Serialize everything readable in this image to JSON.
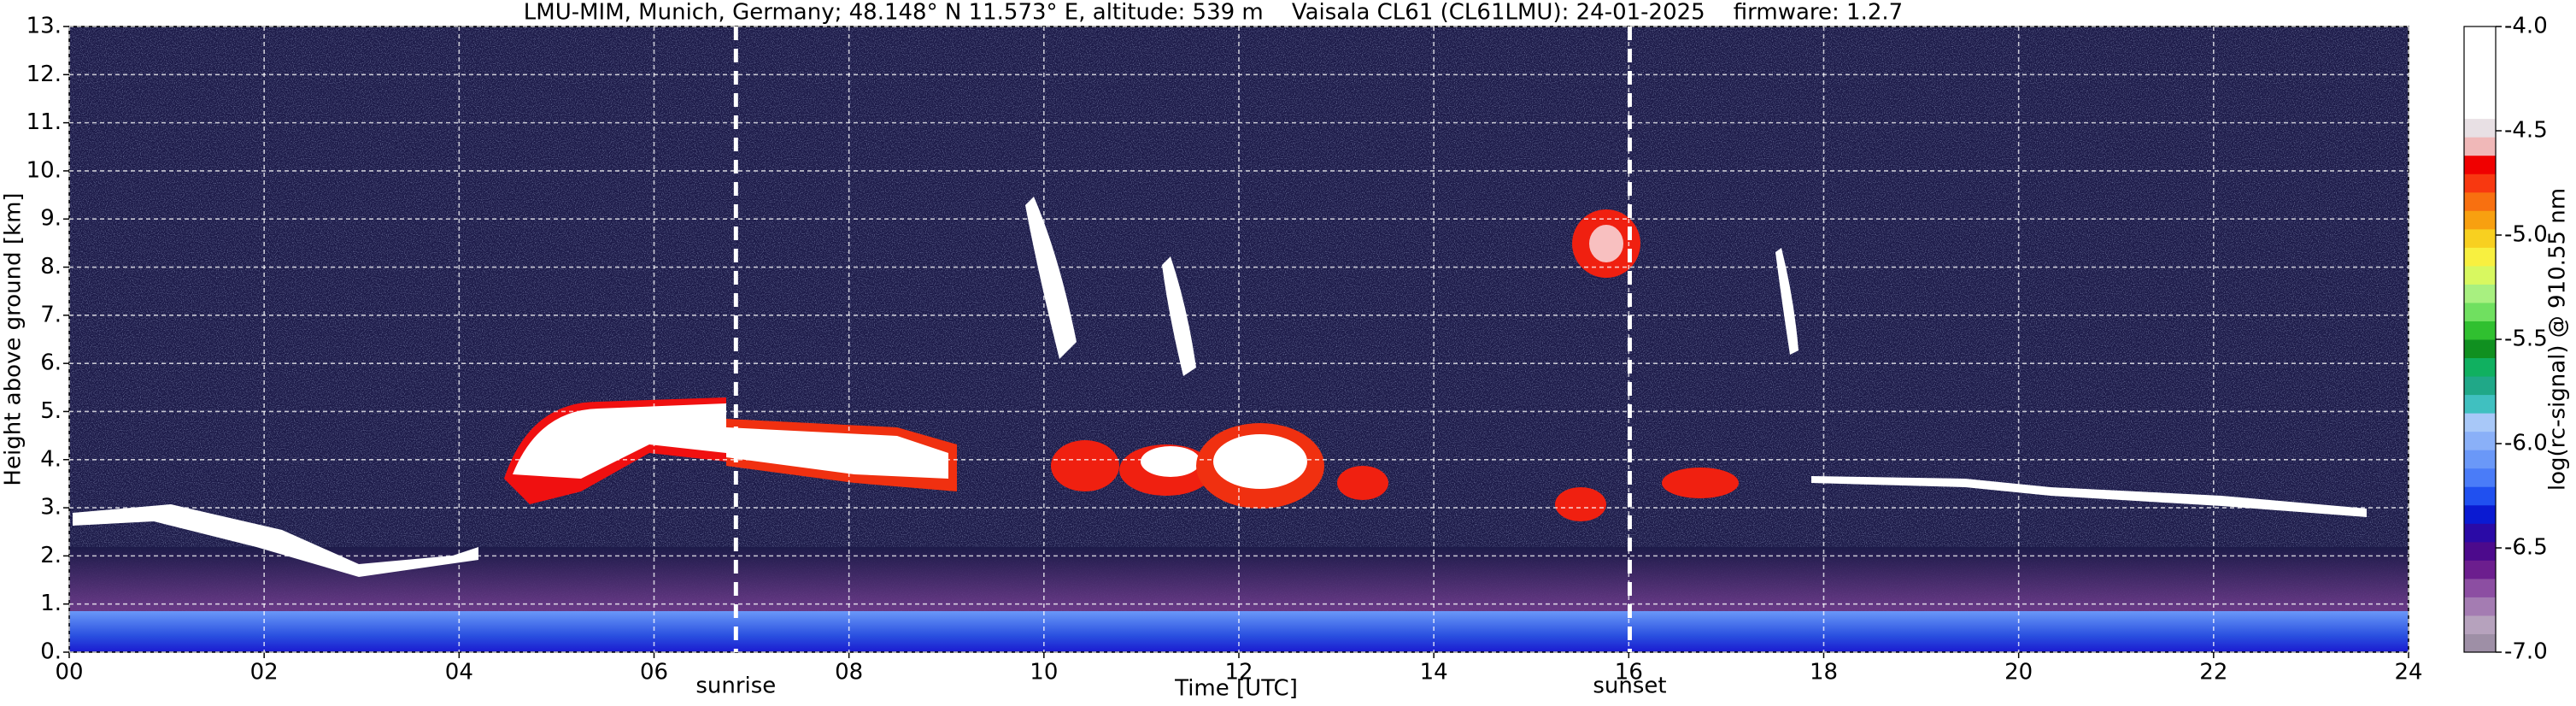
{
  "chart_data": {
    "type": "heatmap",
    "title": "LMU-MIM, Munich, Germany; 48.148° N 11.573° E, altitude: 539 m    Vaisala CL61 (CL61LMU): 24-01-2025    firmware: 1.2.7",
    "x_label": "Time [UTC]",
    "y_label": "Height above ground [km]",
    "xlim": [
      0,
      24
    ],
    "xticks": [
      {
        "value": 0,
        "label": "00"
      },
      {
        "value": 2,
        "label": "02"
      },
      {
        "value": 4,
        "label": "04"
      },
      {
        "value": 6,
        "label": "06"
      },
      {
        "value": 8,
        "label": "08"
      },
      10,
      12,
      14,
      16,
      18,
      20,
      22,
      24
    ],
    "ylim": [
      0,
      13
    ],
    "yticks": [
      {
        "value": 0,
        "label": "0."
      },
      {
        "value": 1,
        "label": "1."
      },
      {
        "value": 2,
        "label": "2."
      },
      {
        "value": 3,
        "label": "3."
      },
      {
        "value": 4,
        "label": "4."
      },
      {
        "value": 5,
        "label": "5."
      },
      {
        "value": 6,
        "label": "6."
      },
      {
        "value": 7,
        "label": "7."
      },
      {
        "value": 8,
        "label": "8."
      },
      {
        "value": 9,
        "label": "9."
      },
      {
        "value": 10,
        "label": "10."
      },
      {
        "value": 11,
        "label": "11."
      },
      {
        "value": 12,
        "label": "12."
      },
      {
        "value": 13,
        "label": "13."
      }
    ],
    "grid": true,
    "annotations": [
      {
        "text": "sunrise",
        "x": 6.84
      },
      {
        "text": "sunset",
        "x": 16.01
      }
    ],
    "colorbar": {
      "label": "log(rc-signal) @ 910.55 nm",
      "lim": [
        -7,
        -4
      ],
      "ticks": [
        {
          "value": -4,
          "label": "-4.0"
        },
        -4.5,
        {
          "value": -5,
          "label": "-5.0"
        },
        -5.5,
        {
          "value": -6,
          "label": "-6.0"
        },
        -6.5,
        {
          "value": -7,
          "label": "-7.0"
        }
      ],
      "colors": [
        "#9e8fa6",
        "#b6a2bd",
        "#a47cb2",
        "#8c4ea2",
        "#6c1e8e",
        "#4c0a8c",
        "#2a0aa6",
        "#0a1ad2",
        "#2050f0",
        "#4a7cf8",
        "#6a98f8",
        "#8ab0f8",
        "#a8c8f8",
        "#40c0c0",
        "#20a888",
        "#10b060",
        "#109020",
        "#30c030",
        "#70e060",
        "#a8f080",
        "#d8f860",
        "#f8f040",
        "#f8d020",
        "#f8a010",
        "#f87010",
        "#f83810",
        "#f00000",
        "#f0b8b8",
        "#e8e0e4",
        "#ffffff",
        "#ffffff",
        "#ffffff",
        "#ffffff",
        "#ffffff"
      ]
    }
  }
}
